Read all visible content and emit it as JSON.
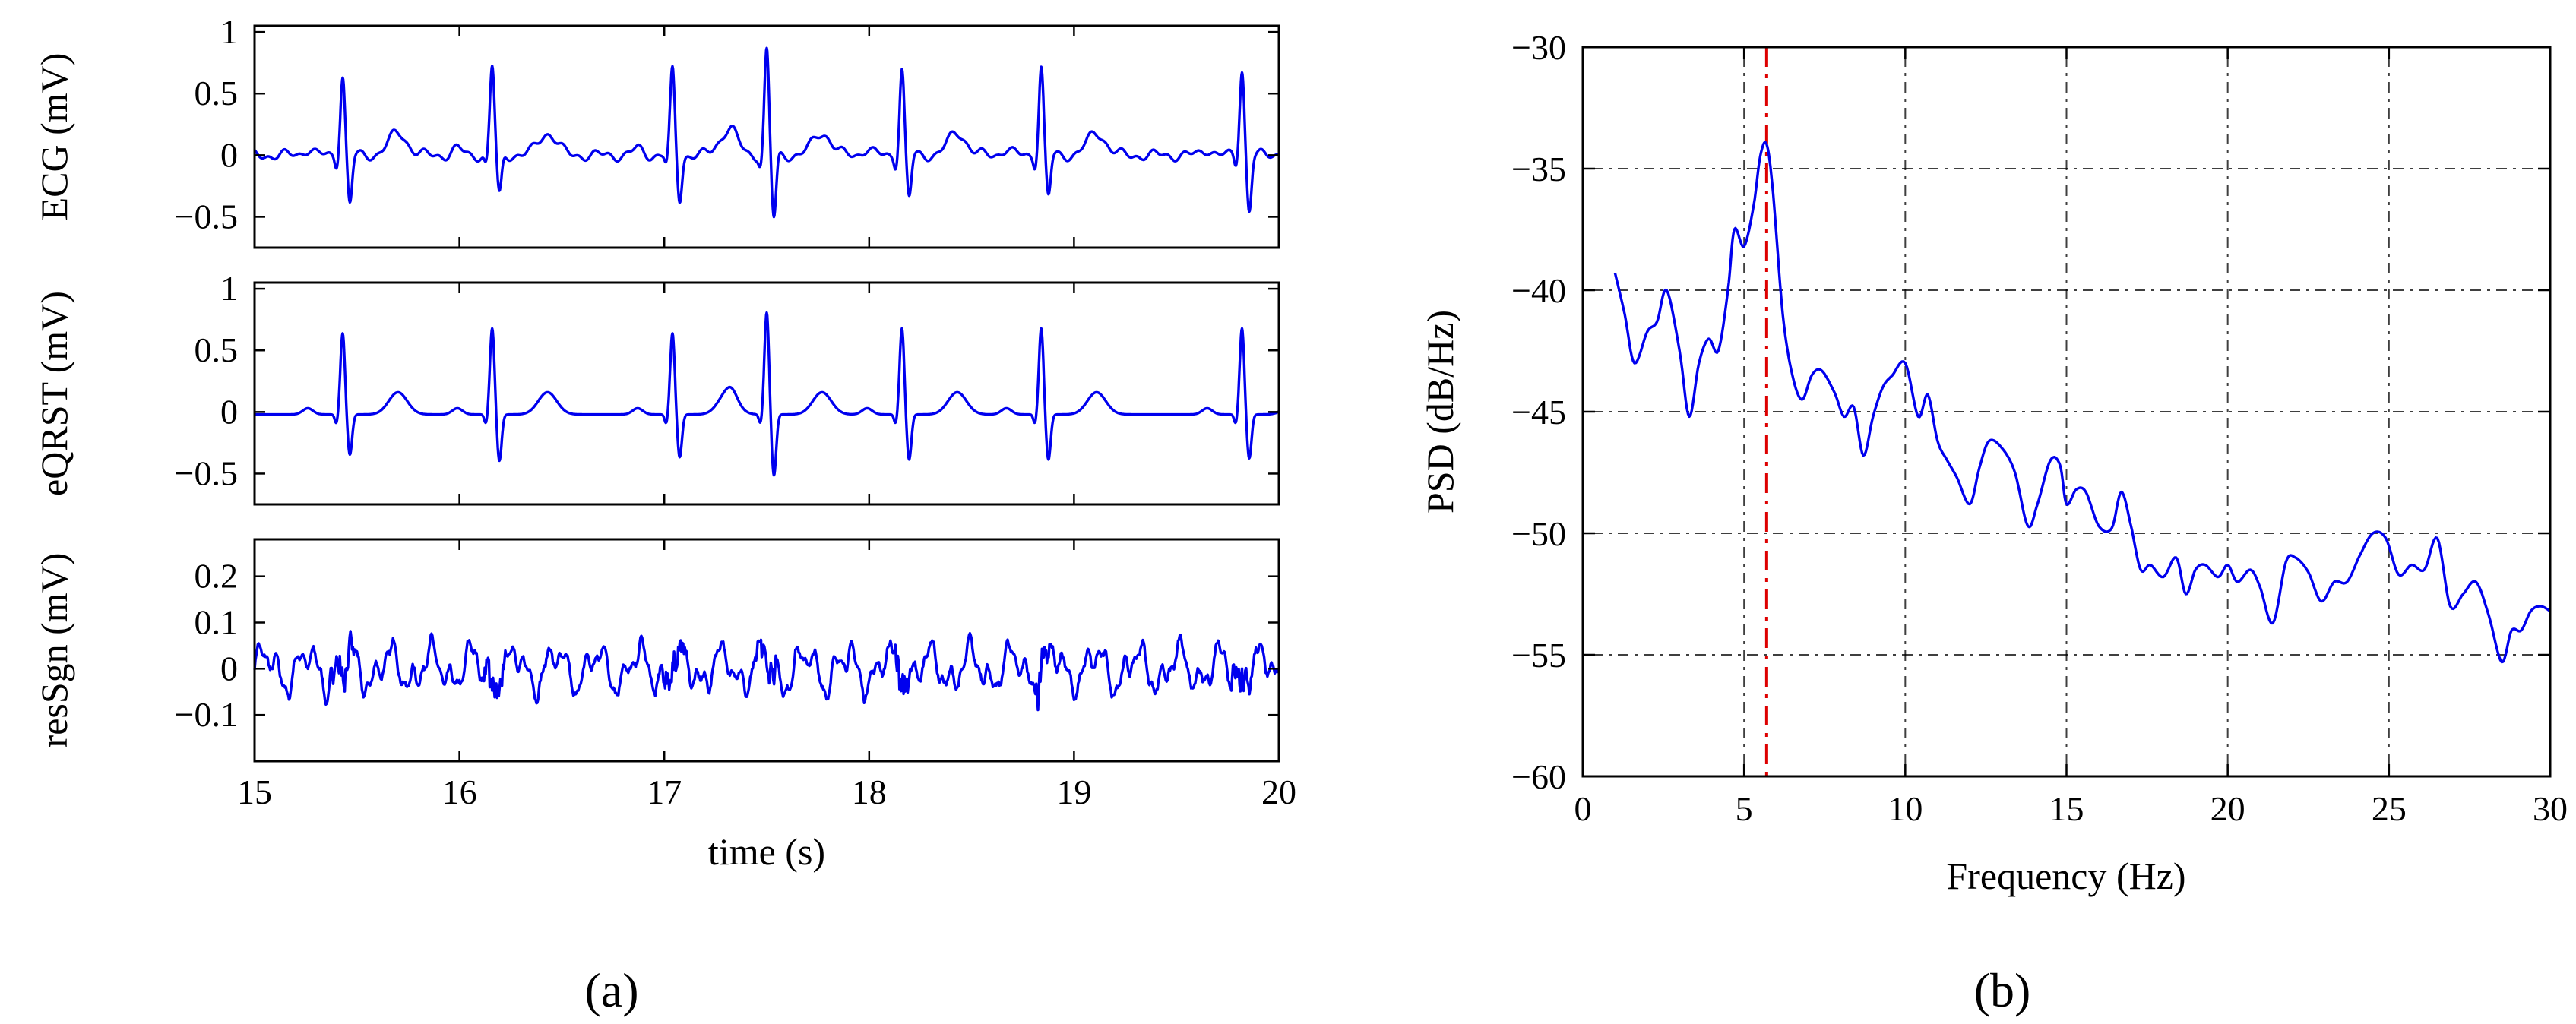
{
  "panel_labels": {
    "a": "(a)",
    "b": "(b)"
  },
  "chart_data": [
    {
      "type": "line",
      "ylabel": "ECG (mV)",
      "xlabel": "",
      "xlim": [
        15,
        20
      ],
      "ylim": [
        -0.75,
        1.05
      ],
      "xticks": [
        "15",
        "16",
        "17",
        "18",
        "19",
        "20"
      ],
      "yticks": [
        1,
        0.5,
        0,
        -0.5
      ],
      "ytick_labels": [
        "1",
        "0.5",
        "0",
        "−0.5"
      ],
      "show_xtick_labels": false,
      "grid": false,
      "color": "#0000ee",
      "r_peaks_s": [
        15.43,
        16.16,
        17.04,
        17.5,
        18.16,
        18.84,
        19.82
      ],
      "r_amplitudes_mv": [
        0.65,
        0.72,
        0.68,
        0.85,
        0.7,
        0.72,
        0.7
      ],
      "s_amplitudes_mv": [
        -0.4,
        -0.33,
        -0.36,
        -0.52,
        -0.35,
        -0.34,
        -0.45
      ],
      "t_amplitude_mv": 0.18
    },
    {
      "type": "line",
      "ylabel": "eQRST (mV)",
      "xlabel": "",
      "xlim": [
        15,
        20
      ],
      "ylim": [
        -0.75,
        1.05
      ],
      "xticks": [
        "15",
        "16",
        "17",
        "18",
        "19",
        "20"
      ],
      "yticks": [
        1,
        0.5,
        0,
        -0.5
      ],
      "ytick_labels": [
        "1",
        "0.5",
        "0",
        "−0.5"
      ],
      "show_xtick_labels": false,
      "grid": false,
      "color": "#0000ee",
      "r_peaks_s": [
        15.43,
        16.16,
        17.04,
        17.5,
        18.16,
        18.84,
        19.82
      ],
      "r_amplitudes_mv": [
        0.66,
        0.7,
        0.66,
        0.83,
        0.7,
        0.7,
        0.7
      ],
      "s_amplitudes_mv": [
        -0.33,
        -0.38,
        -0.35,
        -0.5,
        -0.37,
        -0.37,
        -0.36
      ],
      "t_amplitude_mv": 0.18
    },
    {
      "type": "line",
      "ylabel": "resSgn (mV)",
      "xlabel": "time (s)",
      "xlim": [
        15,
        20
      ],
      "ylim": [
        -0.2,
        0.28
      ],
      "xticks": [
        "15",
        "16",
        "17",
        "18",
        "19",
        "20"
      ],
      "yticks": [
        0.2,
        0.1,
        0,
        -0.1
      ],
      "ytick_labels": [
        "0.2",
        "0.1",
        "0",
        "−0.1"
      ],
      "show_xtick_labels": true,
      "grid": false,
      "color": "#0000ee",
      "residual_range_mv": [
        -0.12,
        0.13
      ]
    },
    {
      "type": "line",
      "ylabel": "PSD (dB/Hz)",
      "xlabel": "Frequency (Hz)",
      "xlim": [
        0,
        30
      ],
      "ylim": [
        -60,
        -30
      ],
      "xticks": [
        "0",
        "5",
        "10",
        "15",
        "20",
        "25",
        "30"
      ],
      "yticks": [
        -30,
        -35,
        -40,
        -45,
        -50,
        -55,
        -60
      ],
      "ytick_labels": [
        "−30",
        "−35",
        "−40",
        "−45",
        "−50",
        "−55",
        "−60"
      ],
      "grid": true,
      "color": "#0000ee",
      "marker_line": {
        "x": 5.7,
        "color": "#dd0000",
        "style": "dash-dot"
      },
      "series": [
        {
          "x": [
            1.0,
            1.3,
            1.6,
            2.0,
            2.3,
            2.6,
            3.0,
            3.3,
            3.6,
            3.9,
            4.2,
            4.5,
            4.7,
            5.0,
            5.3,
            5.5,
            5.7,
            5.9,
            6.2,
            6.5,
            6.8,
            7.1,
            7.4,
            7.8,
            8.1,
            8.4,
            8.7,
            9.0,
            9.3,
            9.6,
            10.0,
            10.4,
            10.7,
            11.0,
            11.3,
            11.6,
            12.0,
            12.3,
            12.6,
            13.0,
            13.4,
            13.8,
            14.1,
            14.5,
            14.8,
            15.0,
            15.3,
            15.6,
            16.0,
            16.4,
            16.7,
            17.0,
            17.3,
            17.6,
            18.0,
            18.4,
            18.7,
            19.0,
            19.3,
            19.7,
            20.0,
            20.3,
            20.7,
            21.0,
            21.4,
            21.8,
            22.1,
            22.5,
            22.9,
            23.3,
            23.7,
            24.1,
            24.5,
            24.9,
            25.3,
            25.7,
            26.1,
            26.5,
            26.9,
            27.3,
            27.7,
            28.1,
            28.5,
            28.8,
            29.1,
            29.4,
            29.7,
            30.0
          ],
          "y": [
            -39.3,
            -41.0,
            -43.0,
            -41.7,
            -41.3,
            -40.0,
            -42.5,
            -45.2,
            -43.0,
            -42.0,
            -42.5,
            -40.0,
            -37.5,
            -38.2,
            -36.5,
            -34.5,
            -34.0,
            -36.0,
            -41.0,
            -43.5,
            -44.5,
            -43.5,
            -43.3,
            -44.2,
            -45.2,
            -44.8,
            -46.8,
            -45.2,
            -44.0,
            -43.5,
            -43.0,
            -45.2,
            -44.3,
            -46.2,
            -47.0,
            -47.7,
            -48.8,
            -47.3,
            -46.2,
            -46.5,
            -47.5,
            -49.7,
            -48.8,
            -47.0,
            -47.2,
            -48.8,
            -48.2,
            -48.3,
            -49.7,
            -49.8,
            -48.3,
            -49.7,
            -51.5,
            -51.3,
            -51.8,
            -51.0,
            -52.5,
            -51.5,
            -51.3,
            -51.8,
            -51.3,
            -52.0,
            -51.5,
            -52.2,
            -53.7,
            -51.2,
            -51.0,
            -51.6,
            -52.8,
            -52.0,
            -52.0,
            -50.9,
            -50.0,
            -50.2,
            -51.7,
            -51.3,
            -51.5,
            -50.2,
            -53.0,
            -52.5,
            -52.0,
            -53.4,
            -55.3,
            -54.0,
            -54.0,
            -53.2,
            -53.0,
            -53.2
          ]
        }
      ]
    }
  ]
}
